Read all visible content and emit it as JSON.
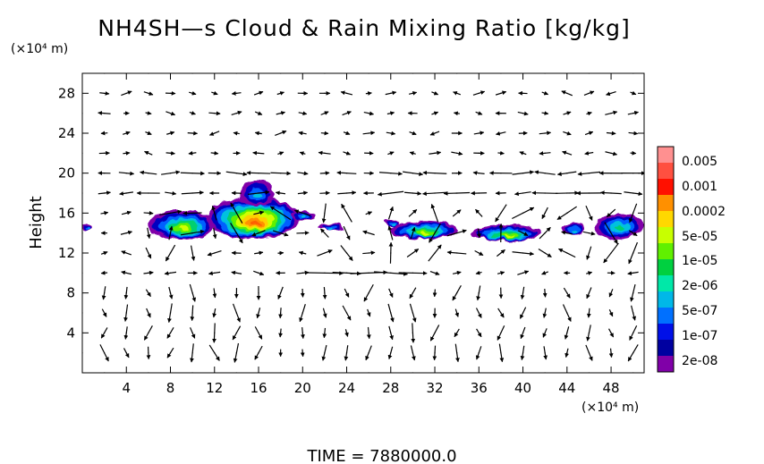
{
  "chart_data": {
    "type": "heatmap",
    "title": "NH4SH—s Cloud & Rain Mixing Ratio [kg/kg]",
    "ylabel": "Height",
    "x_unit": "(×10⁴ m)",
    "y_unit": "(×10⁴ m)",
    "footer": "TIME  =  7880000.0",
    "xlim": [
      0,
      51
    ],
    "ylim": [
      0,
      30
    ],
    "x_ticks": [
      4,
      8,
      12,
      16,
      20,
      24,
      28,
      32,
      36,
      40,
      44,
      48
    ],
    "y_ticks": [
      4,
      8,
      12,
      16,
      20,
      24,
      28
    ],
    "x_tick_labels": [
      "4",
      "8",
      "12",
      "16",
      "20",
      "24",
      "28",
      "32",
      "36",
      "40",
      "44",
      "48"
    ],
    "y_tick_labels": [
      "4",
      "8",
      "12",
      "16",
      "20",
      "24",
      "28"
    ],
    "colorbar": {
      "levels_printed": [
        "0.005",
        "0.001",
        "0.0002",
        "5e-05",
        "1e-05",
        "2e-06",
        "5e-07",
        "1e-07",
        "2e-08"
      ],
      "colors": [
        "#ff9090",
        "#ff5040",
        "#ff1000",
        "#ff9000",
        "#ffd800",
        "#c8ff00",
        "#60f000",
        "#00d040",
        "#00e8a8",
        "#00b8e8",
        "#0070ff",
        "#0010e8",
        "#0000a0",
        "#8000a8"
      ]
    },
    "cloud_blobs": [
      {
        "x": 0.5,
        "y": 14.6,
        "w": 1.0,
        "h": 0.8
      },
      {
        "x": 9.0,
        "y": 14.8,
        "w": 6.0,
        "h": 3.0
      },
      {
        "x": 15.5,
        "y": 15.5,
        "w": 8.5,
        "h": 4.2
      },
      {
        "x": 15.8,
        "y": 18.0,
        "w": 3.0,
        "h": 2.5
      },
      {
        "x": 20.0,
        "y": 15.8,
        "w": 2.5,
        "h": 1.0
      },
      {
        "x": 22.5,
        "y": 14.6,
        "w": 2.2,
        "h": 0.6
      },
      {
        "x": 28.0,
        "y": 15.0,
        "w": 1.3,
        "h": 0.8
      },
      {
        "x": 31.0,
        "y": 14.3,
        "w": 6.0,
        "h": 1.8
      },
      {
        "x": 38.5,
        "y": 14.0,
        "w": 6.2,
        "h": 1.6
      },
      {
        "x": 44.5,
        "y": 14.5,
        "w": 2.0,
        "h": 1.2
      },
      {
        "x": 48.7,
        "y": 14.7,
        "w": 4.4,
        "h": 2.6
      }
    ]
  }
}
